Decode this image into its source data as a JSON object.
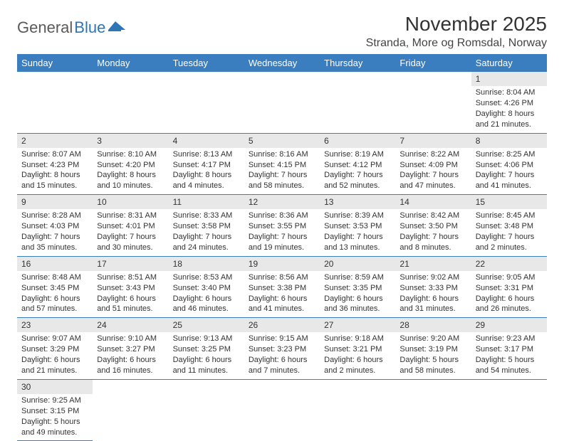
{
  "logo": {
    "part1": "General",
    "part2": "Blue"
  },
  "title": "November 2025",
  "location": "Stranda, More og Romsdal, Norway",
  "weekdays": [
    "Sunday",
    "Monday",
    "Tuesday",
    "Wednesday",
    "Thursday",
    "Friday",
    "Saturday"
  ],
  "colors": {
    "header_bg": "#3a7ebf",
    "header_text": "#ffffff",
    "daynum_bg": "#e8e8e8",
    "border": "#3a7ebf",
    "logo_gray": "#5a5a5a",
    "logo_blue": "#2e75b6"
  },
  "weeks": [
    [
      null,
      null,
      null,
      null,
      null,
      null,
      {
        "n": "1",
        "sunrise": "Sunrise: 8:04 AM",
        "sunset": "Sunset: 4:26 PM",
        "daylight1": "Daylight: 8 hours",
        "daylight2": "and 21 minutes."
      }
    ],
    [
      {
        "n": "2",
        "sunrise": "Sunrise: 8:07 AM",
        "sunset": "Sunset: 4:23 PM",
        "daylight1": "Daylight: 8 hours",
        "daylight2": "and 15 minutes."
      },
      {
        "n": "3",
        "sunrise": "Sunrise: 8:10 AM",
        "sunset": "Sunset: 4:20 PM",
        "daylight1": "Daylight: 8 hours",
        "daylight2": "and 10 minutes."
      },
      {
        "n": "4",
        "sunrise": "Sunrise: 8:13 AM",
        "sunset": "Sunset: 4:17 PM",
        "daylight1": "Daylight: 8 hours",
        "daylight2": "and 4 minutes."
      },
      {
        "n": "5",
        "sunrise": "Sunrise: 8:16 AM",
        "sunset": "Sunset: 4:15 PM",
        "daylight1": "Daylight: 7 hours",
        "daylight2": "and 58 minutes."
      },
      {
        "n": "6",
        "sunrise": "Sunrise: 8:19 AM",
        "sunset": "Sunset: 4:12 PM",
        "daylight1": "Daylight: 7 hours",
        "daylight2": "and 52 minutes."
      },
      {
        "n": "7",
        "sunrise": "Sunrise: 8:22 AM",
        "sunset": "Sunset: 4:09 PM",
        "daylight1": "Daylight: 7 hours",
        "daylight2": "and 47 minutes."
      },
      {
        "n": "8",
        "sunrise": "Sunrise: 8:25 AM",
        "sunset": "Sunset: 4:06 PM",
        "daylight1": "Daylight: 7 hours",
        "daylight2": "and 41 minutes."
      }
    ],
    [
      {
        "n": "9",
        "sunrise": "Sunrise: 8:28 AM",
        "sunset": "Sunset: 4:03 PM",
        "daylight1": "Daylight: 7 hours",
        "daylight2": "and 35 minutes."
      },
      {
        "n": "10",
        "sunrise": "Sunrise: 8:31 AM",
        "sunset": "Sunset: 4:01 PM",
        "daylight1": "Daylight: 7 hours",
        "daylight2": "and 30 minutes."
      },
      {
        "n": "11",
        "sunrise": "Sunrise: 8:33 AM",
        "sunset": "Sunset: 3:58 PM",
        "daylight1": "Daylight: 7 hours",
        "daylight2": "and 24 minutes."
      },
      {
        "n": "12",
        "sunrise": "Sunrise: 8:36 AM",
        "sunset": "Sunset: 3:55 PM",
        "daylight1": "Daylight: 7 hours",
        "daylight2": "and 19 minutes."
      },
      {
        "n": "13",
        "sunrise": "Sunrise: 8:39 AM",
        "sunset": "Sunset: 3:53 PM",
        "daylight1": "Daylight: 7 hours",
        "daylight2": "and 13 minutes."
      },
      {
        "n": "14",
        "sunrise": "Sunrise: 8:42 AM",
        "sunset": "Sunset: 3:50 PM",
        "daylight1": "Daylight: 7 hours",
        "daylight2": "and 8 minutes."
      },
      {
        "n": "15",
        "sunrise": "Sunrise: 8:45 AM",
        "sunset": "Sunset: 3:48 PM",
        "daylight1": "Daylight: 7 hours",
        "daylight2": "and 2 minutes."
      }
    ],
    [
      {
        "n": "16",
        "sunrise": "Sunrise: 8:48 AM",
        "sunset": "Sunset: 3:45 PM",
        "daylight1": "Daylight: 6 hours",
        "daylight2": "and 57 minutes."
      },
      {
        "n": "17",
        "sunrise": "Sunrise: 8:51 AM",
        "sunset": "Sunset: 3:43 PM",
        "daylight1": "Daylight: 6 hours",
        "daylight2": "and 51 minutes."
      },
      {
        "n": "18",
        "sunrise": "Sunrise: 8:53 AM",
        "sunset": "Sunset: 3:40 PM",
        "daylight1": "Daylight: 6 hours",
        "daylight2": "and 46 minutes."
      },
      {
        "n": "19",
        "sunrise": "Sunrise: 8:56 AM",
        "sunset": "Sunset: 3:38 PM",
        "daylight1": "Daylight: 6 hours",
        "daylight2": "and 41 minutes."
      },
      {
        "n": "20",
        "sunrise": "Sunrise: 8:59 AM",
        "sunset": "Sunset: 3:35 PM",
        "daylight1": "Daylight: 6 hours",
        "daylight2": "and 36 minutes."
      },
      {
        "n": "21",
        "sunrise": "Sunrise: 9:02 AM",
        "sunset": "Sunset: 3:33 PM",
        "daylight1": "Daylight: 6 hours",
        "daylight2": "and 31 minutes."
      },
      {
        "n": "22",
        "sunrise": "Sunrise: 9:05 AM",
        "sunset": "Sunset: 3:31 PM",
        "daylight1": "Daylight: 6 hours",
        "daylight2": "and 26 minutes."
      }
    ],
    [
      {
        "n": "23",
        "sunrise": "Sunrise: 9:07 AM",
        "sunset": "Sunset: 3:29 PM",
        "daylight1": "Daylight: 6 hours",
        "daylight2": "and 21 minutes."
      },
      {
        "n": "24",
        "sunrise": "Sunrise: 9:10 AM",
        "sunset": "Sunset: 3:27 PM",
        "daylight1": "Daylight: 6 hours",
        "daylight2": "and 16 minutes."
      },
      {
        "n": "25",
        "sunrise": "Sunrise: 9:13 AM",
        "sunset": "Sunset: 3:25 PM",
        "daylight1": "Daylight: 6 hours",
        "daylight2": "and 11 minutes."
      },
      {
        "n": "26",
        "sunrise": "Sunrise: 9:15 AM",
        "sunset": "Sunset: 3:23 PM",
        "daylight1": "Daylight: 6 hours",
        "daylight2": "and 7 minutes."
      },
      {
        "n": "27",
        "sunrise": "Sunrise: 9:18 AM",
        "sunset": "Sunset: 3:21 PM",
        "daylight1": "Daylight: 6 hours",
        "daylight2": "and 2 minutes."
      },
      {
        "n": "28",
        "sunrise": "Sunrise: 9:20 AM",
        "sunset": "Sunset: 3:19 PM",
        "daylight1": "Daylight: 5 hours",
        "daylight2": "and 58 minutes."
      },
      {
        "n": "29",
        "sunrise": "Sunrise: 9:23 AM",
        "sunset": "Sunset: 3:17 PM",
        "daylight1": "Daylight: 5 hours",
        "daylight2": "and 54 minutes."
      }
    ],
    [
      {
        "n": "30",
        "sunrise": "Sunrise: 9:25 AM",
        "sunset": "Sunset: 3:15 PM",
        "daylight1": "Daylight: 5 hours",
        "daylight2": "and 49 minutes."
      },
      null,
      null,
      null,
      null,
      null,
      null
    ]
  ]
}
